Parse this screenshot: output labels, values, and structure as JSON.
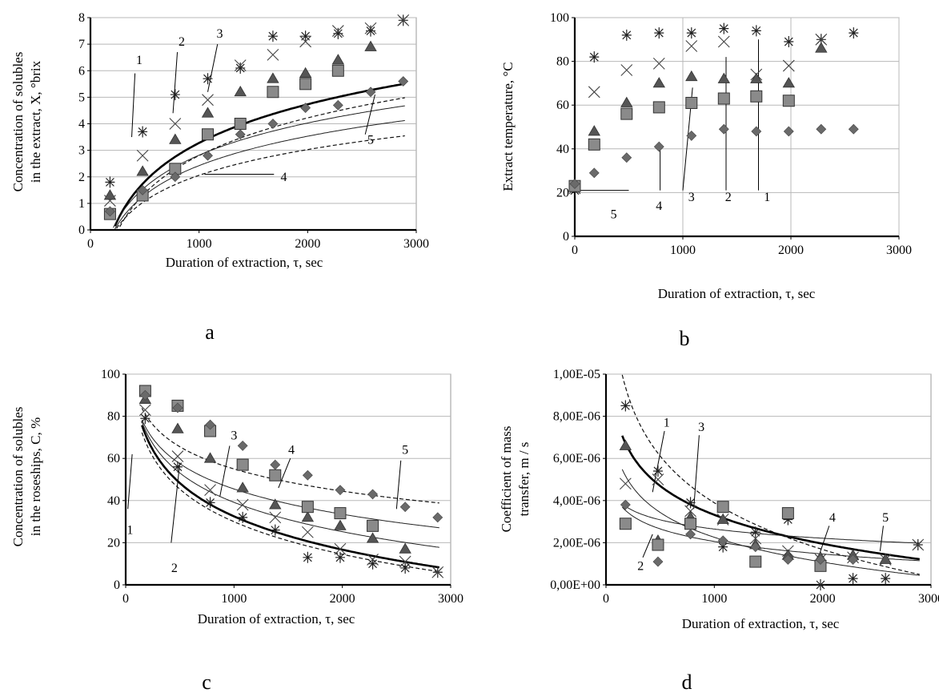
{
  "chart_data": [
    {
      "type": "scatter",
      "panel_label": "a",
      "xlabel": "Duration of extraction, τ, sec",
      "ylabel_line1": "Concentration of solubles",
      "ylabel_line2": "in the extract, X, °brix",
      "xlim": [
        0,
        3000
      ],
      "ylim": [
        0,
        8
      ],
      "xticks": [
        "0",
        "1000",
        "2000",
        "3000"
      ],
      "yticks": [
        "0",
        "1",
        "2",
        "3",
        "4",
        "5",
        "6",
        "7",
        "8"
      ],
      "grid": "horizontal",
      "series": [
        {
          "marker": "star",
          "x": [
            180,
            480,
            780,
            1080,
            1380,
            1680,
            1980,
            2280,
            2580,
            2880
          ],
          "y": [
            1.8,
            3.7,
            5.1,
            5.7,
            6.1,
            7.3,
            7.3,
            7.4,
            7.5,
            7.9
          ]
        },
        {
          "marker": "x",
          "x": [
            180,
            480,
            780,
            1080,
            1380,
            1680,
            1980,
            2280,
            2580,
            2880
          ],
          "y": [
            1.1,
            2.8,
            4.0,
            4.9,
            6.2,
            6.6,
            7.1,
            7.5,
            7.6,
            7.9
          ]
        },
        {
          "marker": "triangle",
          "x": [
            180,
            480,
            780,
            1080,
            1380,
            1680,
            1980,
            2280,
            2580
          ],
          "y": [
            1.3,
            2.2,
            3.4,
            4.4,
            5.2,
            5.7,
            5.9,
            6.4,
            6.9
          ]
        },
        {
          "marker": "square",
          "x": [
            180,
            480,
            780,
            1080,
            1380,
            1680,
            1980,
            2280
          ],
          "y": [
            0.6,
            1.3,
            2.3,
            3.6,
            4.0,
            5.2,
            5.5,
            6.0
          ]
        },
        {
          "marker": "diamond",
          "x": [
            180,
            480,
            780,
            1080,
            1380,
            1680,
            1980,
            2280,
            2580,
            2880
          ],
          "y": [
            0.7,
            1.5,
            2.0,
            2.8,
            3.6,
            4.0,
            4.6,
            4.7,
            5.2,
            5.6
          ]
        }
      ],
      "curves": [
        {
          "style": "dashed",
          "k": 2.05,
          "p": 255
        },
        {
          "style": "bold",
          "k": 2.1,
          "p": 210
        },
        {
          "style": "thin",
          "k": 1.75,
          "p": 200
        },
        {
          "style": "thin",
          "k": 1.6,
          "p": 220
        },
        {
          "style": "dashed",
          "k": 1.4,
          "p": 230
        }
      ],
      "annotations": [
        {
          "text": "1",
          "x": 450,
          "y": 6.4,
          "lx1": 410,
          "ly1": 5.9,
          "lx2": 380,
          "ly2": 3.5
        },
        {
          "text": "2",
          "x": 840,
          "y": 7.1,
          "lx1": 800,
          "ly1": 6.7,
          "lx2": 760,
          "ly2": 4.4
        },
        {
          "text": "3",
          "x": 1190,
          "y": 7.4,
          "lx1": 1170,
          "ly1": 7.0,
          "lx2": 1080,
          "ly2": 5.2
        },
        {
          "text": "4",
          "x": 1780,
          "y": 2.0,
          "lx1": 1690,
          "ly1": 2.1,
          "lx2": 1050,
          "ly2": 2.1
        },
        {
          "text": "5",
          "x": 2580,
          "y": 3.4,
          "lx1": 2530,
          "ly1": 3.6,
          "lx2": 2620,
          "ly2": 5.1
        }
      ]
    },
    {
      "type": "scatter",
      "panel_label": "b",
      "xlabel": "Duration of extraction, τ, sec",
      "ylabel_line1": "Extract  temperature, °C",
      "ylabel_line2": "",
      "xlim": [
        0,
        3000
      ],
      "ylim": [
        0,
        100
      ],
      "xticks": [
        "0",
        "1000",
        "2000",
        "3000"
      ],
      "yticks": [
        "0",
        "20",
        "40",
        "60",
        "80",
        "100"
      ],
      "grid": "both",
      "series": [
        {
          "marker": "star",
          "x": [
            0,
            180,
            480,
            780,
            1080,
            1380,
            1680,
            1980,
            2280,
            2580
          ],
          "y": [
            21,
            82,
            92,
            93,
            93,
            95,
            94,
            89,
            90,
            93
          ]
        },
        {
          "marker": "x",
          "x": [
            0,
            180,
            480,
            780,
            1080,
            1380,
            1680,
            1980,
            2280
          ],
          "y": [
            22,
            66,
            76,
            79,
            87,
            89,
            74,
            78,
            90
          ]
        },
        {
          "marker": "triangle",
          "x": [
            0,
            180,
            480,
            780,
            1080,
            1380,
            1680,
            1980,
            2280
          ],
          "y": [
            23,
            48,
            61,
            70,
            73,
            72,
            72,
            70,
            86
          ]
        },
        {
          "marker": "square",
          "x": [
            0,
            180,
            480,
            780,
            1080,
            1380,
            1680,
            1980
          ],
          "y": [
            23,
            42,
            56,
            59,
            61,
            63,
            64,
            62
          ]
        },
        {
          "marker": "diamond",
          "x": [
            0,
            180,
            480,
            780,
            1080,
            1380,
            1680,
            1980,
            2280,
            2580
          ],
          "y": [
            24,
            29,
            36,
            41,
            46,
            49,
            48,
            48,
            49,
            49
          ]
        }
      ],
      "curves": [],
      "annotations": [
        {
          "text": "5",
          "x": 360,
          "y": 10,
          "lx1": 500,
          "ly1": 21,
          "lx2": 0,
          "ly2": 21
        },
        {
          "text": "4",
          "x": 780,
          "y": 14,
          "lx1": 790,
          "ly1": 21,
          "lx2": 790,
          "ly2": 42
        },
        {
          "text": "3",
          "x": 1080,
          "y": 18,
          "lx1": 1000,
          "ly1": 21,
          "lx2": 1090,
          "ly2": 68
        },
        {
          "text": "2",
          "x": 1420,
          "y": 18,
          "lx1": 1400,
          "ly1": 21,
          "lx2": 1400,
          "ly2": 82
        },
        {
          "text": "1",
          "x": 1780,
          "y": 18,
          "lx1": 1700,
          "ly1": 21,
          "lx2": 1700,
          "ly2": 90
        }
      ]
    },
    {
      "type": "scatter",
      "panel_label": "c",
      "xlabel": "Duration of extraction, τ, sec",
      "ylabel_line1": "Concentration of solubles",
      "ylabel_line2": "in the roseships, C, %",
      "xlim": [
        0,
        3000
      ],
      "ylim": [
        0,
        100
      ],
      "xticks": [
        "0",
        "1000",
        "2000",
        "3000"
      ],
      "yticks": [
        "0",
        "20",
        "40",
        "60",
        "80",
        "100"
      ],
      "grid": "horizontal",
      "series": [
        {
          "marker": "star",
          "x": [
            180,
            480,
            780,
            1080,
            1380,
            1680,
            1980,
            2280,
            2580,
            2880
          ],
          "y": [
            79,
            56,
            39,
            32,
            26,
            13,
            13,
            10,
            8,
            6
          ]
        },
        {
          "marker": "x",
          "x": [
            180,
            480,
            780,
            1080,
            1380,
            1680,
            1980,
            2280,
            2580,
            2880
          ],
          "y": [
            83,
            61,
            45,
            38,
            32,
            25,
            17,
            12,
            11,
            6
          ]
        },
        {
          "marker": "triangle",
          "x": [
            180,
            480,
            780,
            1080,
            1380,
            1680,
            1980,
            2280,
            2580
          ],
          "y": [
            88,
            74,
            60,
            46,
            38,
            32,
            28,
            22,
            17
          ]
        },
        {
          "marker": "square",
          "x": [
            180,
            480,
            780,
            1080,
            1380,
            1680,
            1980,
            2280
          ],
          "y": [
            92,
            85,
            73,
            57,
            52,
            37,
            34,
            28
          ]
        },
        {
          "marker": "diamond",
          "x": [
            180,
            480,
            780,
            1080,
            1380,
            1680,
            1980,
            2280,
            2580,
            2880
          ],
          "y": [
            90,
            84,
            76,
            66,
            57,
            52,
            45,
            43,
            37,
            32
          ]
        }
      ],
      "curves": [
        {
          "style": "dashed",
          "a": 184,
          "b": 22.3
        },
        {
          "style": "bold",
          "a": 190,
          "b": 22.8
        },
        {
          "style": "thin",
          "a": 178,
          "b": 20.1
        },
        {
          "style": "thin",
          "a": 165,
          "b": 17.3
        },
        {
          "style": "dashed",
          "a": 160,
          "b": 15.2
        }
      ],
      "annotations": [
        {
          "text": "1",
          "x": 40,
          "y": 26,
          "lx1": 20,
          "ly1": 36,
          "lx2": 60,
          "ly2": 62
        },
        {
          "text": "2",
          "x": 450,
          "y": 8,
          "lx1": 420,
          "ly1": 20,
          "lx2": 500,
          "ly2": 58
        },
        {
          "text": "3",
          "x": 1000,
          "y": 71,
          "lx1": 960,
          "ly1": 66,
          "lx2": 870,
          "ly2": 42
        },
        {
          "text": "4",
          "x": 1530,
          "y": 64,
          "lx1": 1520,
          "ly1": 60,
          "lx2": 1410,
          "ly2": 46
        },
        {
          "text": "5",
          "x": 2580,
          "y": 64,
          "lx1": 2540,
          "ly1": 59,
          "lx2": 2500,
          "ly2": 36
        }
      ]
    },
    {
      "type": "scatter",
      "panel_label": "d",
      "xlabel": "Duration of extraction, τ, sec",
      "ylabel_line1": "Coefficient  of mass",
      "ylabel_line2": "transfer,  m / s",
      "xlim": [
        0,
        3000
      ],
      "ylim": [
        0,
        1e-05
      ],
      "xticks": [
        "0",
        "1000",
        "2000",
        "3000"
      ],
      "yticks": [
        "0,00E+00",
        "2,00E-06",
        "4,00E-06",
        "6,00E-06",
        "8,00E-06",
        "1,00E-05"
      ],
      "grid": "horizontal",
      "series": [
        {
          "marker": "star",
          "x": [
            180,
            480,
            780,
            1080,
            1380,
            1680,
            1980,
            2280,
            2580,
            2880
          ],
          "y": [
            8.5e-06,
            5.4e-06,
            3.9e-06,
            1.8e-06,
            2.5e-06,
            3.1e-06,
            0.0,
            3e-07,
            3e-07,
            1.9e-06
          ]
        },
        {
          "marker": "x",
          "x": [
            180,
            480,
            780,
            1080,
            1380,
            1680,
            1980,
            2280,
            2580,
            2880
          ],
          "y": [
            4.8e-06,
            5e-06,
            3.5e-06,
            3.1e-06,
            2.2e-06,
            1.6e-06,
            1.2e-06,
            1.3e-06,
            1.2e-06,
            1.9e-06
          ]
        },
        {
          "marker": "triangle",
          "x": [
            180,
            480,
            780,
            1080,
            1380,
            1680,
            1980,
            2280,
            2580
          ],
          "y": [
            6.6e-06,
            2.1e-06,
            3.2e-06,
            3.1e-06,
            1.9e-06,
            1.4e-06,
            1.3e-06,
            1.4e-06,
            1.2e-06
          ]
        },
        {
          "marker": "square",
          "x": [
            180,
            480,
            780,
            1080,
            1380,
            1680,
            1980
          ],
          "y": [
            2.9e-06,
            1.9e-06,
            2.9e-06,
            3.7e-06,
            1.1e-06,
            3.4e-06,
            9e-07
          ]
        },
        {
          "marker": "diamond",
          "x": [
            180,
            480,
            780,
            1080,
            1380,
            1680,
            1980,
            2280
          ],
          "y": [
            3.8e-06,
            1.1e-06,
            2.4e-06,
            2.1e-06,
            1.8e-06,
            1.2e-06,
            1.2e-06,
            1.2e-06
          ]
        }
      ],
      "curves": [
        {
          "style": "dashed",
          "a": 2.6e-05,
          "b": 3.2e-06
        },
        {
          "style": "bold",
          "a": 1.7e-05,
          "b": 1.98e-06
        },
        {
          "style": "thin",
          "a": 1.4e-05,
          "b": 1.7e-06
        },
        {
          "style": "thin",
          "a": 8e-06,
          "b": 8.6e-07
        },
        {
          "style": "thin",
          "a": 7e-06,
          "b": 6.3e-07
        }
      ],
      "annotations": [
        {
          "text": "1",
          "x": 560,
          "y": 7.7e-06,
          "lx1": 540,
          "ly1": 7.3e-06,
          "lx2": 430,
          "ly2": 4.4e-06
        },
        {
          "text": "2",
          "x": 320,
          "y": 9e-07,
          "lx1": 340,
          "ly1": 1.3e-06,
          "lx2": 430,
          "ly2": 2.4e-06
        },
        {
          "text": "3",
          "x": 880,
          "y": 7.5e-06,
          "lx1": 860,
          "ly1": 7.1e-06,
          "lx2": 810,
          "ly2": 3.6e-06
        },
        {
          "text": "4",
          "x": 2090,
          "y": 3.2e-06,
          "lx1": 2060,
          "ly1": 2.8e-06,
          "lx2": 1960,
          "ly2": 1.3e-06
        },
        {
          "text": "5",
          "x": 2580,
          "y": 3.2e-06,
          "lx1": 2560,
          "ly1": 2.8e-06,
          "lx2": 2530,
          "ly2": 1.6e-06
        }
      ]
    }
  ]
}
